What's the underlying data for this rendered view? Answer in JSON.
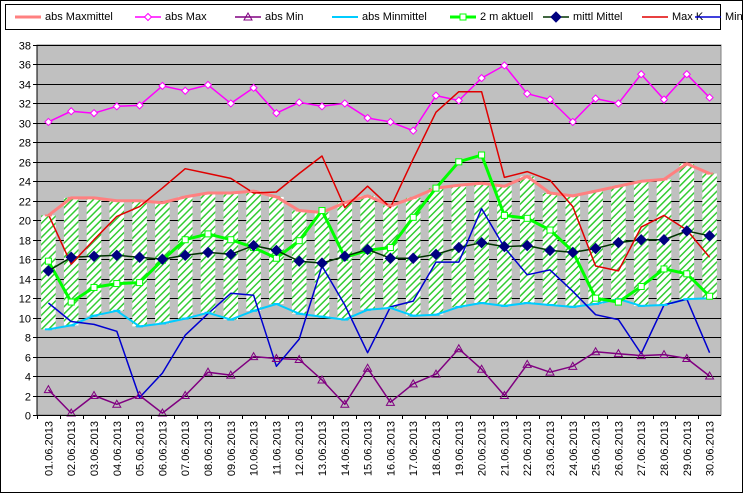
{
  "chart_data": {
    "type": "line",
    "categories": [
      "01.06.2013",
      "02.06.2013",
      "03.06.2013",
      "04.06.2013",
      "05.06.2013",
      "06.06.2013",
      "07.06.2013",
      "08.06.2013",
      "09.06.2013",
      "10.06.2013",
      "11.06.2013",
      "12.06.2013",
      "13.06.2013",
      "14.06.2013",
      "15.06.2013",
      "16.06.2013",
      "17.06.2013",
      "18.06.2013",
      "19.06.2013",
      "20.06.2013",
      "21.06.2013",
      "22.06.2013",
      "23.06.2013",
      "24.06.2013",
      "25.06.2013",
      "26.06.2013",
      "27.06.2013",
      "28.06.2013",
      "29.06.2013",
      "30.06.2013"
    ],
    "ylim": [
      0,
      38
    ],
    "yticks": [
      "0",
      "2",
      "4",
      "6",
      "8",
      "10",
      "12",
      "14",
      "16",
      "18",
      "20",
      "22",
      "24",
      "26",
      "28",
      "30",
      "32",
      "34",
      "36",
      "38"
    ],
    "grid": "horizontal",
    "background": "#c0c0c0",
    "legend_position": "top",
    "band": {
      "upper": "abs Maxmittel",
      "lower": "abs Minmittel",
      "fill": "hatched green"
    },
    "series": [
      {
        "name": "abs Maxmittel",
        "color": "#ff8080",
        "marker": "dash",
        "values": [
          20.5,
          22.3,
          22.3,
          22.0,
          22.0,
          21.8,
          22.4,
          22.8,
          22.8,
          23.0,
          22.4,
          21.0,
          20.8,
          21.8,
          22.5,
          21.5,
          22.3,
          23.3,
          23.6,
          23.8,
          23.5,
          24.5,
          22.8,
          22.5,
          23.0,
          23.5,
          24.0,
          24.2,
          25.8,
          24.8
        ]
      },
      {
        "name": "abs Max",
        "color": "#ff00ff",
        "marker": "diamond-open",
        "values": [
          30.1,
          31.2,
          31.0,
          31.7,
          31.8,
          33.8,
          33.3,
          33.9,
          32.0,
          33.6,
          31.0,
          32.1,
          31.7,
          32.0,
          30.5,
          30.1,
          29.2,
          32.8,
          32.3,
          34.6,
          35.9,
          33.0,
          32.4,
          30.1,
          32.5,
          32.0,
          35.0,
          32.4,
          35.0,
          32.6
        ]
      },
      {
        "name": "abs Min",
        "color": "#800080",
        "marker": "triangle-open",
        "values": [
          2.6,
          0.2,
          2.0,
          1.1,
          2.0,
          0.2,
          2.0,
          4.4,
          4.1,
          6.0,
          5.8,
          5.7,
          3.6,
          1.1,
          4.8,
          1.3,
          3.2,
          4.2,
          6.8,
          4.7,
          2.0,
          5.2,
          4.4,
          5.0,
          6.5,
          6.3,
          6.1,
          6.2,
          5.8,
          4.0
        ]
      },
      {
        "name": "abs Minmittel",
        "color": "#00ccff",
        "marker": "dash",
        "values": [
          8.8,
          9.2,
          10.2,
          10.7,
          9.1,
          9.4,
          9.9,
          10.5,
          9.8,
          10.7,
          11.4,
          10.4,
          10.1,
          9.8,
          10.8,
          11.0,
          10.2,
          10.3,
          11.1,
          11.5,
          11.2,
          11.5,
          11.3,
          11.1,
          11.4,
          11.9,
          11.2,
          11.3,
          11.9,
          12.0
        ]
      },
      {
        "name": "2 m aktuell",
        "color": "#00ff00",
        "marker": "square-open",
        "values": [
          15.8,
          11.6,
          13.1,
          13.5,
          13.6,
          15.9,
          18.0,
          18.6,
          18.0,
          17.2,
          16.1,
          17.9,
          21.0,
          16.2,
          16.9,
          17.2,
          20.3,
          23.3,
          26.0,
          26.7,
          20.5,
          20.2,
          19.0,
          16.8,
          12.0,
          11.6,
          13.2,
          15.0,
          14.5,
          12.2
        ]
      },
      {
        "name": "mittl Mittel",
        "color": "#003300",
        "marker": "diamond-filled",
        "marker_color": "#000080",
        "values": [
          14.8,
          16.2,
          16.3,
          16.4,
          16.2,
          16.0,
          16.4,
          16.7,
          16.5,
          17.4,
          16.9,
          15.8,
          15.6,
          16.3,
          17.0,
          16.1,
          16.1,
          16.5,
          17.2,
          17.7,
          17.3,
          17.4,
          16.9,
          16.7,
          17.1,
          17.7,
          18.0,
          18.0,
          18.9,
          18.4
        ]
      },
      {
        "name": "Max K",
        "color": "#e00000",
        "marker": "none",
        "values": [
          20.6,
          15.5,
          18.0,
          20.4,
          21.4,
          23.3,
          25.3,
          24.8,
          24.3,
          22.8,
          22.9,
          24.8,
          26.6,
          21.3,
          23.5,
          21.3,
          26.3,
          31.1,
          33.2,
          33.2,
          24.4,
          25.0,
          24.1,
          21.4,
          15.3,
          14.8,
          19.3,
          20.5,
          19.0,
          16.2
        ]
      },
      {
        "name": "Min K",
        "color": "#0000d0",
        "marker": "none",
        "values": [
          11.5,
          9.6,
          9.3,
          8.6,
          1.8,
          4.3,
          8.2,
          10.4,
          12.5,
          12.3,
          5.0,
          7.8,
          15.3,
          11.3,
          6.4,
          11.1,
          11.7,
          15.7,
          15.7,
          21.2,
          17.2,
          14.4,
          14.9,
          12.7,
          10.3,
          9.8,
          6.3,
          11.3,
          11.9,
          6.4
        ]
      }
    ]
  }
}
